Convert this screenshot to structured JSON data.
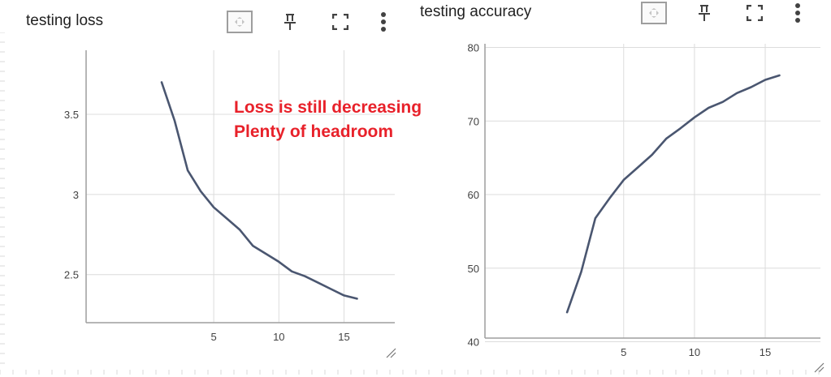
{
  "cards": [
    {
      "title": "testing loss",
      "toolbar": [
        "fit-domain-icon",
        "pin-icon",
        "fullscreen-icon",
        "more-vert-icon"
      ]
    },
    {
      "title": "testing accuracy",
      "toolbar": [
        "fit-domain-icon",
        "pin-icon",
        "fullscreen-icon",
        "more-vert-icon"
      ]
    }
  ],
  "annotation": {
    "line1": "Loss is still decreasing",
    "line2": "Plenty of headroom",
    "color": "#e8212a"
  },
  "colors": {
    "line": "#4a5670",
    "grid": "#dcdcdc",
    "axis": "#9e9e9e"
  },
  "chart_data": [
    {
      "type": "line",
      "title": "testing loss",
      "xlabel": "",
      "ylabel": "",
      "x_ticks": [
        5,
        10,
        15
      ],
      "y_ticks": [
        2.5,
        3,
        3.5
      ],
      "y_tick_labels": [
        "2.5",
        "3",
        "3.5"
      ],
      "xlim": [
        -4.8,
        18.9
      ],
      "ylim": [
        2.2,
        3.9
      ],
      "grid": true,
      "series": [
        {
          "x": [
            1,
            2,
            3,
            4,
            5,
            6,
            7,
            8,
            9,
            10,
            11,
            12,
            13,
            14,
            15,
            16
          ],
          "values": [
            3.7,
            3.46,
            3.15,
            3.02,
            2.92,
            2.85,
            2.78,
            2.68,
            2.63,
            2.58,
            2.52,
            2.49,
            2.45,
            2.41,
            2.37,
            2.35
          ]
        }
      ]
    },
    {
      "type": "line",
      "title": "testing accuracy",
      "xlabel": "",
      "ylabel": "",
      "x_ticks": [
        5,
        10,
        15
      ],
      "y_ticks": [
        40,
        50,
        60,
        70,
        80
      ],
      "y_tick_labels": [
        "40",
        "50",
        "60",
        "70",
        "80"
      ],
      "xlim": [
        -4.8,
        18.9
      ],
      "ylim": [
        40.5,
        80.5
      ],
      "grid": true,
      "series": [
        {
          "x": [
            1,
            2,
            3,
            4,
            5,
            6,
            7,
            8,
            9,
            10,
            11,
            12,
            13,
            14,
            15,
            16
          ],
          "values": [
            44,
            49.5,
            56.8,
            59.5,
            62.0,
            63.7,
            65.4,
            67.6,
            69.0,
            70.5,
            71.8,
            72.6,
            73.8,
            74.6,
            75.6,
            76.2
          ]
        }
      ]
    }
  ]
}
